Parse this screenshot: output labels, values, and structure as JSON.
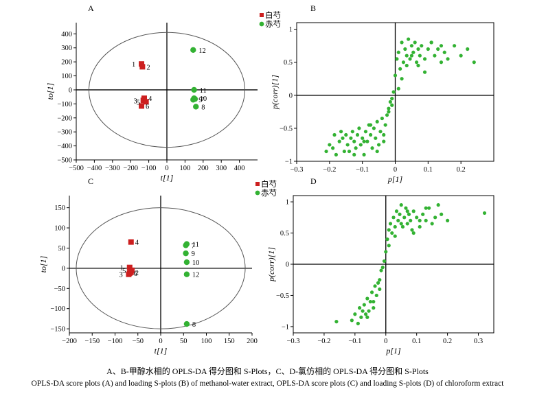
{
  "figure": {
    "caption_zh": "A、B-甲醇水相的 OPLS-DA 得分图和 S-Plots，C、D-氯仿相的 OPLS-DA 得分图和 S-Plots",
    "caption_en": "OPLS-DA score plots (A) and loading S-plots (B) of methanol-water extract, OPLS-DA score plots (C) and loading S-plots (D) of chloroform extract",
    "colors": {
      "group1": "#cc1f1f",
      "group2": "#33b233",
      "axis": "#000000",
      "ellipse": "#555555"
    }
  },
  "chart_data": [
    {
      "panel": "A",
      "type": "scatter",
      "xlabel": "t[1]",
      "ylabel": "to[1]",
      "xlim": [
        -500,
        500
      ],
      "ylim": [
        -500,
        480
      ],
      "xticks": [
        -500,
        -400,
        -300,
        -200,
        -100,
        0,
        100,
        200,
        300,
        400
      ],
      "yticks": [
        -500,
        -400,
        -300,
        -200,
        -100,
        0,
        100,
        200,
        300,
        400
      ],
      "ellipse": {
        "rx": 430,
        "ry": 410
      },
      "legend": [
        "白芍",
        "赤芍"
      ],
      "series": [
        {
          "name": "白芍",
          "marker": "square",
          "points": [
            {
              "label": "1",
              "x": -140,
              "y": 185
            },
            {
              "label": "2",
              "x": -135,
              "y": 165
            },
            {
              "label": "3",
              "x": -130,
              "y": -75
            },
            {
              "label": "4",
              "x": -125,
              "y": -60
            },
            {
              "label": "5",
              "x": -115,
              "y": -85
            },
            {
              "label": "6",
              "x": -140,
              "y": -115
            }
          ]
        },
        {
          "name": "赤芍",
          "marker": "circle",
          "points": [
            {
              "label": "7",
              "x": 155,
              "y": -65
            },
            {
              "label": "8",
              "x": 160,
              "y": -120
            },
            {
              "label": "9",
              "x": 145,
              "y": -70
            },
            {
              "label": "10",
              "x": 150,
              "y": -60
            },
            {
              "label": "11",
              "x": 150,
              "y": 0
            },
            {
              "label": "12",
              "x": 145,
              "y": 285
            }
          ]
        }
      ]
    },
    {
      "panel": "B",
      "type": "scatter",
      "xlabel": "p[1]",
      "ylabel": "p(corr)[1]",
      "xlim": [
        -0.3,
        0.3
      ],
      "ylim": [
        -1,
        1.1
      ],
      "xticks": [
        -0.3,
        -0.2,
        -0.1,
        0,
        0.1,
        0.2
      ],
      "yticks": [
        -1,
        -0.5,
        0,
        0.5,
        1
      ],
      "x": [
        -0.21,
        -0.2,
        -0.19,
        -0.18,
        -0.17,
        -0.16,
        -0.155,
        -0.15,
        -0.145,
        -0.14,
        -0.135,
        -0.13,
        -0.125,
        -0.12,
        -0.115,
        -0.11,
        -0.105,
        -0.1,
        -0.095,
        -0.09,
        -0.085,
        -0.08,
        -0.075,
        -0.07,
        -0.065,
        -0.06,
        -0.055,
        -0.05,
        -0.045,
        -0.04,
        -0.035,
        -0.03,
        -0.025,
        -0.02,
        -0.015,
        -0.01,
        -0.005,
        0,
        0.005,
        0.01,
        0.015,
        0.02,
        0.025,
        0.03,
        0.035,
        0.04,
        0.045,
        0.05,
        0.055,
        0.06,
        0.065,
        0.07,
        0.075,
        0.08,
        0.09,
        0.1,
        0.11,
        0.12,
        0.13,
        0.14,
        0.15,
        0.16,
        0.18,
        0.2,
        0.22,
        0.24,
        -0.185,
        -0.165,
        -0.125,
        -0.095,
        -0.075,
        -0.055,
        -0.035,
        -0.02,
        -0.01,
        0.01,
        0.02,
        0.035,
        0.05,
        0.07,
        0.09,
        0.11,
        0.14
      ],
      "y": [
        -0.85,
        -0.75,
        -0.8,
        -0.9,
        -0.7,
        -0.65,
        -0.85,
        -0.6,
        -0.75,
        -0.85,
        -0.65,
        -0.55,
        -0.7,
        -0.8,
        -0.6,
        -0.5,
        -0.75,
        -0.65,
        -0.9,
        -0.55,
        -0.7,
        -0.45,
        -0.6,
        -0.8,
        -0.5,
        -0.65,
        -0.4,
        -0.75,
        -0.55,
        -0.35,
        -0.6,
        -0.45,
        -0.3,
        -0.2,
        -0.1,
        -0.05,
        0.05,
        0.3,
        0.55,
        0.65,
        0.4,
        0.8,
        0.5,
        0.7,
        0.6,
        0.85,
        0.55,
        0.75,
        0.65,
        0.8,
        0.5,
        0.7,
        0.6,
        0.75,
        0.55,
        0.7,
        0.8,
        0.6,
        0.7,
        0.5,
        0.65,
        0.55,
        0.75,
        0.6,
        0.7,
        0.5,
        -0.6,
        -0.55,
        -0.9,
        -0.7,
        -0.45,
        -0.85,
        -0.7,
        -0.25,
        -0.15,
        0.1,
        0.25,
        0.45,
        0.6,
        0.45,
        0.35,
        0.8,
        0.75
      ]
    },
    {
      "panel": "C",
      "type": "scatter",
      "xlabel": "t[1]",
      "ylabel": "to[1]",
      "xlim": [
        -200,
        200
      ],
      "ylim": [
        -160,
        180
      ],
      "xticks": [
        -200,
        -150,
        -100,
        -50,
        0,
        50,
        100,
        150,
        200
      ],
      "yticks": [
        -150,
        -100,
        -50,
        0,
        50,
        100,
        150
      ],
      "ellipse": {
        "rx": 185,
        "ry": 150
      },
      "legend": [
        "白芍",
        "赤芍"
      ],
      "series": [
        {
          "name": "白芍",
          "marker": "square",
          "points": [
            {
              "label": "1",
              "x": -68,
              "y": 2
            },
            {
              "label": "2",
              "x": -65,
              "y": -10
            },
            {
              "label": "3",
              "x": -70,
              "y": -15
            },
            {
              "label": "4",
              "x": -65,
              "y": 65
            },
            {
              "label": "5",
              "x": -63,
              "y": -5
            },
            {
              "label": "6",
              "x": -68,
              "y": -12
            }
          ]
        },
        {
          "name": "赤芍",
          "marker": "circle",
          "points": [
            {
              "label": "7",
              "x": 55,
              "y": 57
            },
            {
              "label": "8",
              "x": 57,
              "y": -138
            },
            {
              "label": "9",
              "x": 55,
              "y": 37
            },
            {
              "label": "10",
              "x": 57,
              "y": 15
            },
            {
              "label": "11",
              "x": 57,
              "y": 60
            },
            {
              "label": "12",
              "x": 57,
              "y": -15
            }
          ]
        }
      ]
    },
    {
      "panel": "D",
      "type": "scatter",
      "xlabel": "p[1]",
      "ylabel": "p(corr)[1]",
      "xlim": [
        -0.3,
        0.35
      ],
      "ylim": [
        -1.1,
        1.1
      ],
      "xticks": [
        -0.3,
        -0.2,
        -0.1,
        0,
        0.1,
        0.2,
        0.3
      ],
      "yticks": [
        -1,
        -0.5,
        0,
        0.5,
        1
      ],
      "x": [
        -0.16,
        -0.11,
        -0.1,
        -0.09,
        -0.085,
        -0.08,
        -0.075,
        -0.07,
        -0.065,
        -0.06,
        -0.055,
        -0.05,
        -0.045,
        -0.04,
        -0.035,
        -0.03,
        -0.025,
        -0.02,
        -0.015,
        -0.01,
        -0.005,
        0,
        0.005,
        0.01,
        0.015,
        0.02,
        0.025,
        0.03,
        0.035,
        0.04,
        0.045,
        0.05,
        0.055,
        0.06,
        0.065,
        0.07,
        0.075,
        0.08,
        0.085,
        0.09,
        0.1,
        0.11,
        0.12,
        0.13,
        0.14,
        0.15,
        0.16,
        0.17,
        0.18,
        0.2,
        0.32,
        -0.06,
        -0.04,
        -0.02,
        0.01,
        0.03,
        0.05,
        0.07,
        0.09,
        0.11,
        0.13
      ],
      "y": [
        -0.92,
        -0.9,
        -0.8,
        -0.95,
        -0.7,
        -0.85,
        -0.75,
        -0.65,
        -0.8,
        -0.55,
        -0.75,
        -0.6,
        -0.45,
        -0.7,
        -0.35,
        -0.5,
        -0.3,
        -0.25,
        -0.1,
        -0.05,
        0.05,
        0.2,
        0.4,
        0.55,
        0.65,
        0.5,
        0.75,
        0.6,
        0.85,
        0.7,
        0.8,
        0.95,
        0.6,
        0.75,
        0.9,
        0.65,
        0.8,
        0.7,
        0.55,
        0.85,
        0.75,
        0.6,
        0.8,
        0.7,
        0.9,
        0.65,
        0.75,
        0.95,
        0.8,
        0.7,
        0.82,
        -0.85,
        -0.6,
        -0.4,
        0.3,
        0.45,
        0.65,
        0.85,
        0.5,
        0.7,
        0.9
      ]
    }
  ]
}
